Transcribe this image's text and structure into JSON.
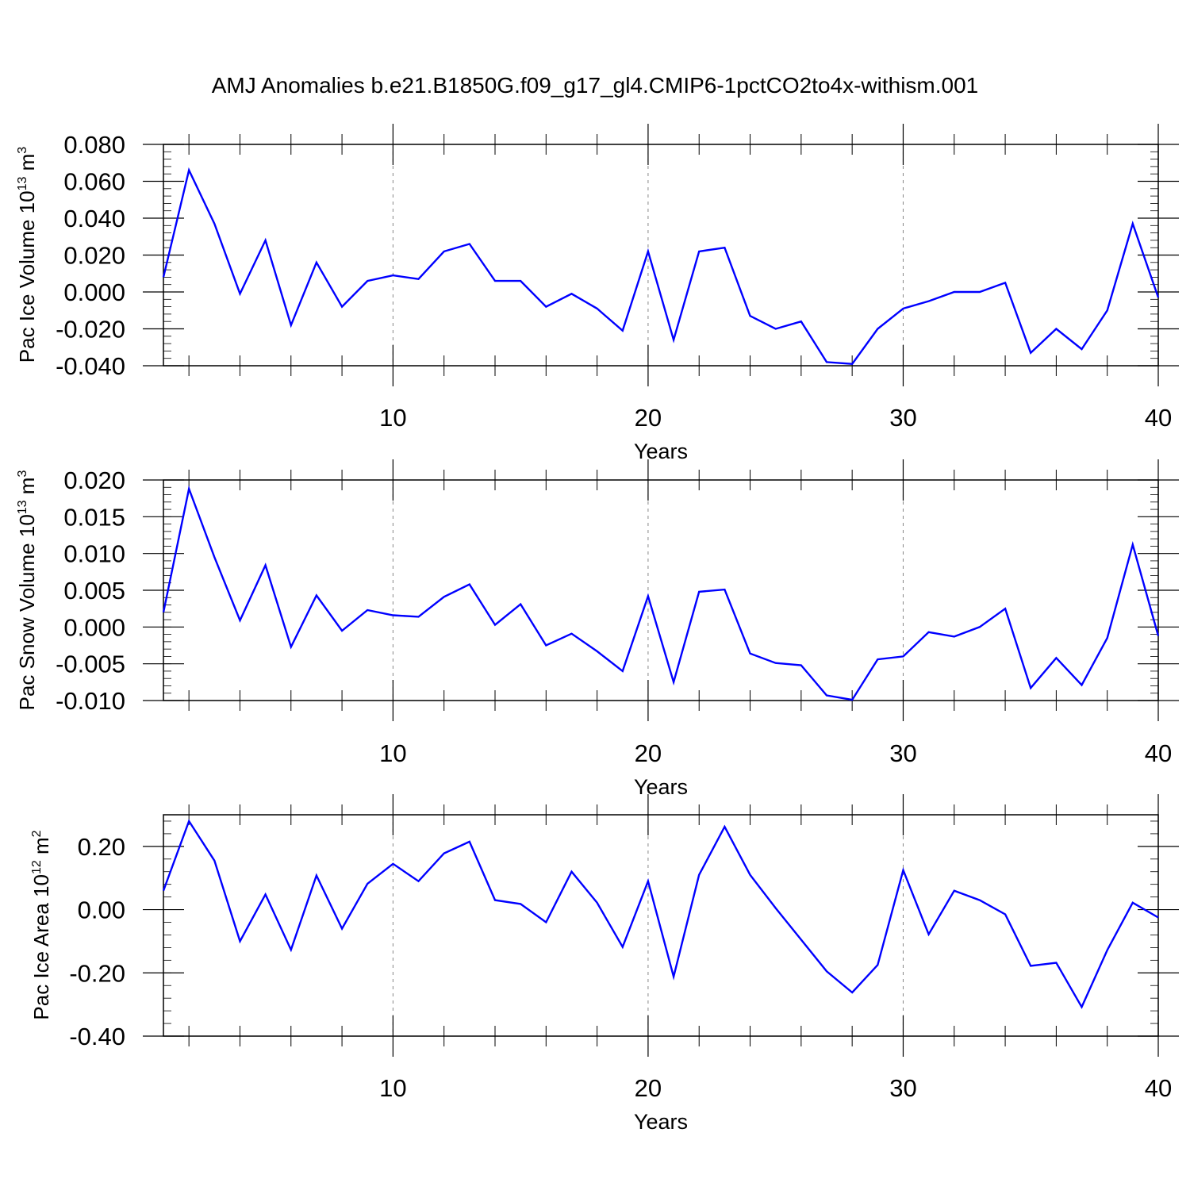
{
  "title": "AMJ Anomalies b.e21.B1850G.f09_g17_gl4.CMIP6-1pctCO2to4x-withism.001",
  "line_color": "#0000ff",
  "chart_data": [
    {
      "type": "line",
      "ylabel": "Pac Ice Volume",
      "ylabel_unit_base": "10",
      "ylabel_unit_exp": "13",
      "ylabel_unit_tail": "m",
      "ylabel_unit_tail_exp": "3",
      "xlabel": "Years",
      "xlim": [
        1,
        40
      ],
      "ylim": [
        -0.04,
        0.08
      ],
      "yticks": [
        "0.080",
        "0.060",
        "0.040",
        "0.020",
        "0.000",
        "-0.020",
        "-0.040"
      ],
      "xticks": [
        "10",
        "20",
        "30",
        "40"
      ],
      "grid": "vertical dashed at major x ticks",
      "series": [
        {
          "x": [
            1,
            2,
            3,
            4,
            5,
            6,
            7,
            8,
            9,
            10,
            11,
            12,
            13,
            14,
            15,
            16,
            17,
            18,
            19,
            20,
            21,
            22,
            23,
            24,
            25,
            26,
            27,
            28,
            29,
            30,
            31,
            32,
            33,
            34,
            35,
            36,
            37,
            38,
            39,
            40
          ],
          "values": [
            0.008,
            0.066,
            0.037,
            -0.001,
            0.028,
            -0.018,
            0.016,
            -0.008,
            0.006,
            0.009,
            0.007,
            0.022,
            0.026,
            0.006,
            0.006,
            -0.008,
            -0.001,
            -0.009,
            -0.021,
            0.022,
            -0.026,
            0.022,
            0.024,
            -0.013,
            -0.02,
            -0.016,
            -0.038,
            -0.039,
            -0.02,
            -0.009,
            -0.005,
            0.0,
            0.0,
            0.005,
            -0.033,
            -0.02,
            -0.031,
            -0.01,
            0.037,
            -0.003
          ]
        }
      ]
    },
    {
      "type": "line",
      "ylabel": "Pac Snow Volume",
      "ylabel_unit_base": "10",
      "ylabel_unit_exp": "13",
      "ylabel_unit_tail": "m",
      "ylabel_unit_tail_exp": "3",
      "xlabel": "Years",
      "xlim": [
        1,
        40
      ],
      "ylim": [
        -0.01,
        0.02
      ],
      "yticks": [
        "0.020",
        "0.015",
        "0.010",
        "0.005",
        "0.000",
        "-0.005",
        "-0.010"
      ],
      "xticks": [
        "10",
        "20",
        "30",
        "40"
      ],
      "grid": "vertical dashed at major x ticks",
      "series": [
        {
          "x": [
            1,
            2,
            3,
            4,
            5,
            6,
            7,
            8,
            9,
            10,
            11,
            12,
            13,
            14,
            15,
            16,
            17,
            18,
            19,
            20,
            21,
            22,
            23,
            24,
            25,
            26,
            27,
            28,
            29,
            30,
            31,
            32,
            33,
            34,
            35,
            36,
            37,
            38,
            39,
            40
          ],
          "values": [
            0.002,
            0.0188,
            0.0095,
            0.0009,
            0.0084,
            -0.0027,
            0.0043,
            -0.0005,
            0.0023,
            0.0016,
            0.0014,
            0.0041,
            0.0058,
            0.0003,
            0.0031,
            -0.0025,
            -0.0009,
            -0.0033,
            -0.006,
            0.0042,
            -0.0075,
            0.0048,
            0.0051,
            -0.0036,
            -0.0049,
            -0.0052,
            -0.0093,
            -0.0099,
            -0.0044,
            -0.004,
            -0.0007,
            -0.0013,
            0.0,
            0.0025,
            -0.0083,
            -0.0042,
            -0.0079,
            -0.0015,
            0.0112,
            -0.0012
          ]
        }
      ]
    },
    {
      "type": "line",
      "ylabel": "Pac Ice Area",
      "ylabel_unit_base": "10",
      "ylabel_unit_exp": "12",
      "ylabel_unit_tail": "m",
      "ylabel_unit_tail_exp": "2",
      "xlabel": "Years",
      "xlim": [
        1,
        40
      ],
      "ylim": [
        -0.4,
        0.3
      ],
      "yticks": [
        "0.20",
        "0.00",
        "-0.20",
        "-0.40"
      ],
      "xticks": [
        "10",
        "20",
        "30",
        "40"
      ],
      "grid": "vertical dashed at major x ticks",
      "series": [
        {
          "x": [
            1,
            2,
            3,
            4,
            5,
            6,
            7,
            8,
            9,
            10,
            11,
            12,
            13,
            14,
            15,
            16,
            17,
            18,
            19,
            20,
            21,
            22,
            23,
            24,
            25,
            26,
            27,
            28,
            29,
            30,
            31,
            32,
            33,
            34,
            35,
            36,
            37,
            38,
            39,
            40
          ],
          "values": [
            0.06,
            0.28,
            0.155,
            -0.1,
            0.048,
            -0.127,
            0.108,
            -0.06,
            0.082,
            0.145,
            0.09,
            0.178,
            0.215,
            0.03,
            0.018,
            -0.04,
            0.12,
            0.022,
            -0.118,
            0.09,
            -0.212,
            0.11,
            0.262,
            0.11,
            0.005,
            -0.095,
            -0.195,
            -0.262,
            -0.175,
            0.125,
            -0.078,
            0.06,
            0.03,
            -0.015,
            -0.178,
            -0.168,
            -0.308,
            -0.128,
            0.022,
            -0.025
          ]
        }
      ]
    }
  ]
}
